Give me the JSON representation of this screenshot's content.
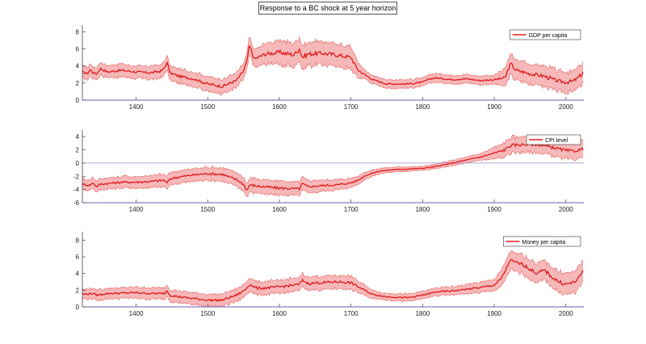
{
  "figure_title": "Response to a BC shock at 5 year horizon",
  "colors": {
    "line": "#e01b1b",
    "band": "#f6b8b8",
    "band_edge": "#e56565",
    "axis": "#7a5aa8",
    "zero": "#9a8cc9"
  },
  "chart_data": [
    {
      "type": "area",
      "legend": "GDP per capita",
      "legend_position": "top-right",
      "xlim": [
        1325,
        2025
      ],
      "ylim": [
        0,
        8.8
      ],
      "yticks": [
        0,
        2,
        4,
        6,
        8
      ],
      "xticks": [
        1400,
        1500,
        1600,
        1700,
        1800,
        1900,
        2000
      ],
      "zero_line": false,
      "band_width": [
        [
          1325,
          0.7
        ],
        [
          1550,
          0.9
        ],
        [
          1600,
          1.4
        ],
        [
          1700,
          1.3
        ],
        [
          1720,
          0.5
        ],
        [
          1900,
          0.5
        ],
        [
          1920,
          1.2
        ],
        [
          2025,
          1.2
        ]
      ],
      "series": [
        {
          "name": "GDP per capita",
          "x": [
            1325,
            1332,
            1336,
            1340,
            1345,
            1350,
            1360,
            1380,
            1400,
            1420,
            1435,
            1440,
            1443,
            1447,
            1460,
            1480,
            1500,
            1520,
            1540,
            1550,
            1555,
            1558,
            1565,
            1580,
            1600,
            1620,
            1628,
            1632,
            1640,
            1660,
            1680,
            1700,
            1710,
            1730,
            1750,
            1780,
            1800,
            1810,
            1820,
            1840,
            1860,
            1880,
            1900,
            1915,
            1920,
            1923,
            1930,
            1950,
            1970,
            1990,
            2000,
            2010,
            2018,
            2022,
            2025
          ],
          "y": [
            3.3,
            3.1,
            3.6,
            3.2,
            3.1,
            3.7,
            3.3,
            3.5,
            3.3,
            3.2,
            3.4,
            3.8,
            4.5,
            3.2,
            2.8,
            2.5,
            1.9,
            1.6,
            2.3,
            3.4,
            4.6,
            6.5,
            4.8,
            5.4,
            5.6,
            5.3,
            6.0,
            5.0,
            5.4,
            5.5,
            5.3,
            5.0,
            3.5,
            2.4,
            1.9,
            1.9,
            2.1,
            2.5,
            2.6,
            2.4,
            2.5,
            2.3,
            2.4,
            2.6,
            3.7,
            4.3,
            3.5,
            3.1,
            2.8,
            2.2,
            2.1,
            2.2,
            2.7,
            3.0,
            3.5
          ]
        }
      ]
    },
    {
      "type": "area",
      "legend": "CPI level",
      "legend_position": "top-right",
      "xlim": [
        1325,
        2025
      ],
      "ylim": [
        -6,
        5
      ],
      "yticks": [
        -6,
        -4,
        -2,
        0,
        2,
        4
      ],
      "xticks": [
        1400,
        1500,
        1600,
        1700,
        1800,
        1900,
        2000
      ],
      "zero_line": true,
      "band_width": [
        [
          1325,
          0.8
        ],
        [
          1600,
          1.1
        ],
        [
          1700,
          0.7
        ],
        [
          1740,
          0.4
        ],
        [
          1800,
          0.3
        ],
        [
          1880,
          0.5
        ],
        [
          1920,
          1.2
        ],
        [
          2025,
          1.3
        ]
      ],
      "series": [
        {
          "name": "CPI level",
          "x": [
            1325,
            1335,
            1340,
            1345,
            1350,
            1380,
            1400,
            1420,
            1440,
            1443,
            1447,
            1460,
            1480,
            1500,
            1520,
            1540,
            1550,
            1555,
            1558,
            1570,
            1600,
            1628,
            1632,
            1640,
            1660,
            1680,
            1700,
            1710,
            1720,
            1740,
            1760,
            1780,
            1800,
            1820,
            1850,
            1880,
            1900,
            1915,
            1920,
            1925,
            1940,
            1960,
            1980,
            2000,
            2010,
            2020,
            2025
          ],
          "y": [
            -3.2,
            -3.4,
            -3.0,
            -3.6,
            -3.2,
            -2.9,
            -2.9,
            -2.8,
            -2.6,
            -3.1,
            -2.4,
            -2.1,
            -1.8,
            -1.6,
            -1.7,
            -2.5,
            -3.2,
            -4.2,
            -3.3,
            -3.5,
            -3.8,
            -3.9,
            -3.1,
            -3.6,
            -3.4,
            -3.3,
            -3.0,
            -2.6,
            -1.9,
            -1.2,
            -1.0,
            -0.9,
            -0.8,
            -0.5,
            0.2,
            0.9,
            1.5,
            2.0,
            2.5,
            2.7,
            2.8,
            2.8,
            2.4,
            1.9,
            1.8,
            2.0,
            2.2
          ]
        }
      ]
    },
    {
      "type": "area",
      "legend": "Money per capita",
      "legend_position": "top-right",
      "xlim": [
        1325,
        2025
      ],
      "ylim": [
        0,
        9
      ],
      "yticks": [
        0,
        2,
        4,
        6,
        8
      ],
      "xticks": [
        1400,
        1500,
        1600,
        1700,
        1800,
        1900,
        2000
      ],
      "zero_line": false,
      "band_width": [
        [
          1325,
          0.6
        ],
        [
          1600,
          0.8
        ],
        [
          1700,
          0.8
        ],
        [
          1740,
          0.4
        ],
        [
          1850,
          0.5
        ],
        [
          1900,
          0.7
        ],
        [
          1920,
          1.1
        ],
        [
          2025,
          1.3
        ]
      ],
      "series": [
        {
          "name": "Money per capita",
          "x": [
            1325,
            1340,
            1345,
            1360,
            1400,
            1420,
            1440,
            1443,
            1447,
            1460,
            1480,
            1500,
            1520,
            1540,
            1550,
            1555,
            1558,
            1570,
            1600,
            1628,
            1632,
            1640,
            1660,
            1680,
            1700,
            1710,
            1730,
            1750,
            1780,
            1800,
            1820,
            1840,
            1860,
            1880,
            1900,
            1910,
            1918,
            1922,
            1930,
            1940,
            1950,
            1960,
            1970,
            1980,
            1990,
            2000,
            2010,
            2018,
            2025
          ],
          "y": [
            1.5,
            1.6,
            1.4,
            1.6,
            1.7,
            1.6,
            1.6,
            2.0,
            1.4,
            1.2,
            1.0,
            0.8,
            0.8,
            1.4,
            1.9,
            2.3,
            2.7,
            2.2,
            2.4,
            2.7,
            3.2,
            2.8,
            2.9,
            3.0,
            2.9,
            2.4,
            1.5,
            1.2,
            1.1,
            1.4,
            1.8,
            1.9,
            2.1,
            2.3,
            2.6,
            3.4,
            4.8,
            5.6,
            5.3,
            5.1,
            4.5,
            4.0,
            4.4,
            3.6,
            3.0,
            2.7,
            2.9,
            3.4,
            4.5
          ]
        }
      ]
    }
  ]
}
